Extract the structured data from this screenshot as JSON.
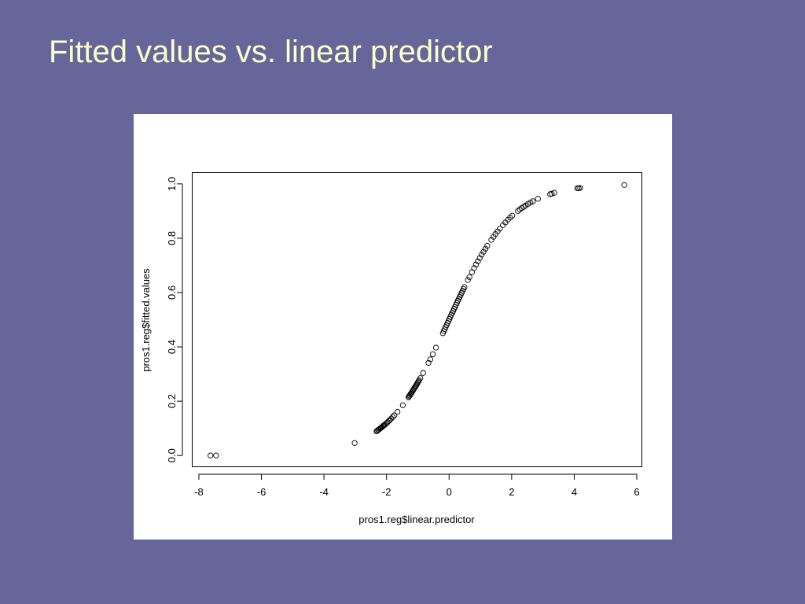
{
  "slide": {
    "title": "Fitted values vs. linear predictor",
    "background_color": "#66669a",
    "title_color": "#ffffcc"
  },
  "chart_data": {
    "type": "scatter",
    "title": "",
    "xlabel": "pros1.reg$linear.predictor",
    "ylabel": "pros1.reg$fitted.values",
    "xlim": [
      -8.2,
      6.15
    ],
    "ylim": [
      -0.04,
      1.04
    ],
    "x_ticks": [
      -8,
      -6,
      -4,
      -2,
      0,
      2,
      4,
      6
    ],
    "x_tick_labels": [
      "-8",
      "-6",
      "-4",
      "-2",
      "0",
      "2",
      "4",
      "6"
    ],
    "y_ticks": [
      0.0,
      0.2,
      0.4,
      0.6,
      0.8,
      1.0
    ],
    "y_tick_labels": [
      "0.0",
      "0.2",
      "0.4",
      "0.6",
      "0.8",
      "1.0"
    ],
    "grid": false,
    "marker": "open-circle",
    "series": [
      {
        "x": [
          -7.63,
          -7.45,
          -3.02,
          -2.32,
          -2.3,
          -2.27,
          -2.25,
          -2.22,
          -2.2,
          -2.18,
          -2.15,
          -2.12,
          -2.1,
          -2.07,
          -2.04,
          -2.0,
          -1.97,
          -1.93,
          -1.89,
          -1.85,
          -1.8,
          -1.75,
          -1.65,
          -1.48,
          -1.3,
          -1.28,
          -1.26,
          -1.24,
          -1.22,
          -1.2,
          -1.18,
          -1.16,
          -1.14,
          -1.12,
          -1.1,
          -1.08,
          -1.06,
          -1.04,
          -1.02,
          -1.0,
          -0.98,
          -0.96,
          -0.92,
          -0.83,
          -0.66,
          -0.6,
          -0.52,
          -0.42,
          -0.2,
          -0.17,
          -0.14,
          -0.11,
          -0.08,
          -0.05,
          -0.02,
          0.01,
          0.04,
          0.07,
          0.1,
          0.13,
          0.16,
          0.19,
          0.22,
          0.25,
          0.28,
          0.31,
          0.34,
          0.37,
          0.4,
          0.43,
          0.46,
          0.49,
          0.6,
          0.65,
          0.73,
          0.8,
          0.86,
          0.92,
          0.98,
          1.04,
          1.1,
          1.16,
          1.22,
          1.35,
          1.42,
          1.48,
          1.55,
          1.62,
          1.72,
          1.8,
          1.88,
          1.95,
          2.02,
          2.2,
          2.26,
          2.32,
          2.38,
          2.44,
          2.52,
          2.6,
          2.68,
          2.84,
          3.23,
          3.28,
          3.36,
          4.1,
          4.14,
          4.19,
          5.6
        ],
        "y": [
          0.0,
          0.0,
          0.046,
          0.089,
          0.091,
          0.094,
          0.095,
          0.098,
          0.1,
          0.102,
          0.104,
          0.107,
          0.11,
          0.112,
          0.115,
          0.119,
          0.122,
          0.127,
          0.131,
          0.136,
          0.142,
          0.148,
          0.161,
          0.185,
          0.214,
          0.218,
          0.221,
          0.225,
          0.228,
          0.231,
          0.235,
          0.239,
          0.242,
          0.246,
          0.25,
          0.253,
          0.257,
          0.261,
          0.265,
          0.269,
          0.273,
          0.277,
          0.285,
          0.304,
          0.341,
          0.354,
          0.373,
          0.397,
          0.45,
          0.458,
          0.465,
          0.473,
          0.48,
          0.488,
          0.495,
          0.503,
          0.51,
          0.518,
          0.525,
          0.532,
          0.54,
          0.547,
          0.555,
          0.562,
          0.57,
          0.577,
          0.584,
          0.591,
          0.599,
          0.606,
          0.613,
          0.62,
          0.646,
          0.657,
          0.675,
          0.69,
          0.703,
          0.715,
          0.727,
          0.739,
          0.75,
          0.761,
          0.772,
          0.794,
          0.805,
          0.815,
          0.825,
          0.835,
          0.848,
          0.858,
          0.868,
          0.876,
          0.883,
          0.9,
          0.906,
          0.911,
          0.915,
          0.92,
          0.926,
          0.931,
          0.936,
          0.945,
          0.962,
          0.964,
          0.967,
          0.984,
          0.984,
          0.985,
          0.996
        ]
      }
    ]
  }
}
